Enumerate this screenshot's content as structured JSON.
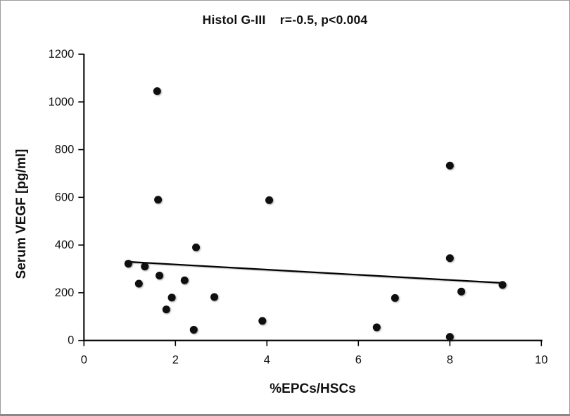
{
  "chart_data": {
    "type": "scatter",
    "title": "Histol G-III    r=-0.5, p<0.004",
    "xlabel": "%EPCs/HSCs",
    "ylabel": "Serum VEGF [pg/ml]",
    "xlim": [
      0,
      10
    ],
    "ylim": [
      0,
      1200
    ],
    "xticks": [
      0,
      2,
      4,
      6,
      8,
      10
    ],
    "yticks": [
      0,
      200,
      400,
      600,
      800,
      1000,
      1200
    ],
    "grid": false,
    "legend": null,
    "marker_color": "#0f0f0f",
    "axis_color": "#000000",
    "points": [
      [
        0.97,
        322
      ],
      [
        1.2,
        238
      ],
      [
        1.33,
        310
      ],
      [
        1.6,
        1045
      ],
      [
        1.62,
        590
      ],
      [
        1.65,
        272
      ],
      [
        1.8,
        130
      ],
      [
        1.92,
        180
      ],
      [
        2.2,
        252
      ],
      [
        2.4,
        45
      ],
      [
        2.45,
        390
      ],
      [
        2.85,
        182
      ],
      [
        3.9,
        82
      ],
      [
        4.05,
        588
      ],
      [
        6.4,
        55
      ],
      [
        6.8,
        178
      ],
      [
        8.0,
        733
      ],
      [
        8.0,
        345
      ],
      [
        8.0,
        15
      ],
      [
        8.25,
        205
      ],
      [
        9.15,
        233
      ]
    ],
    "trendline": {
      "x1": 0.95,
      "y1": 330,
      "x2": 9.17,
      "y2": 241
    }
  }
}
